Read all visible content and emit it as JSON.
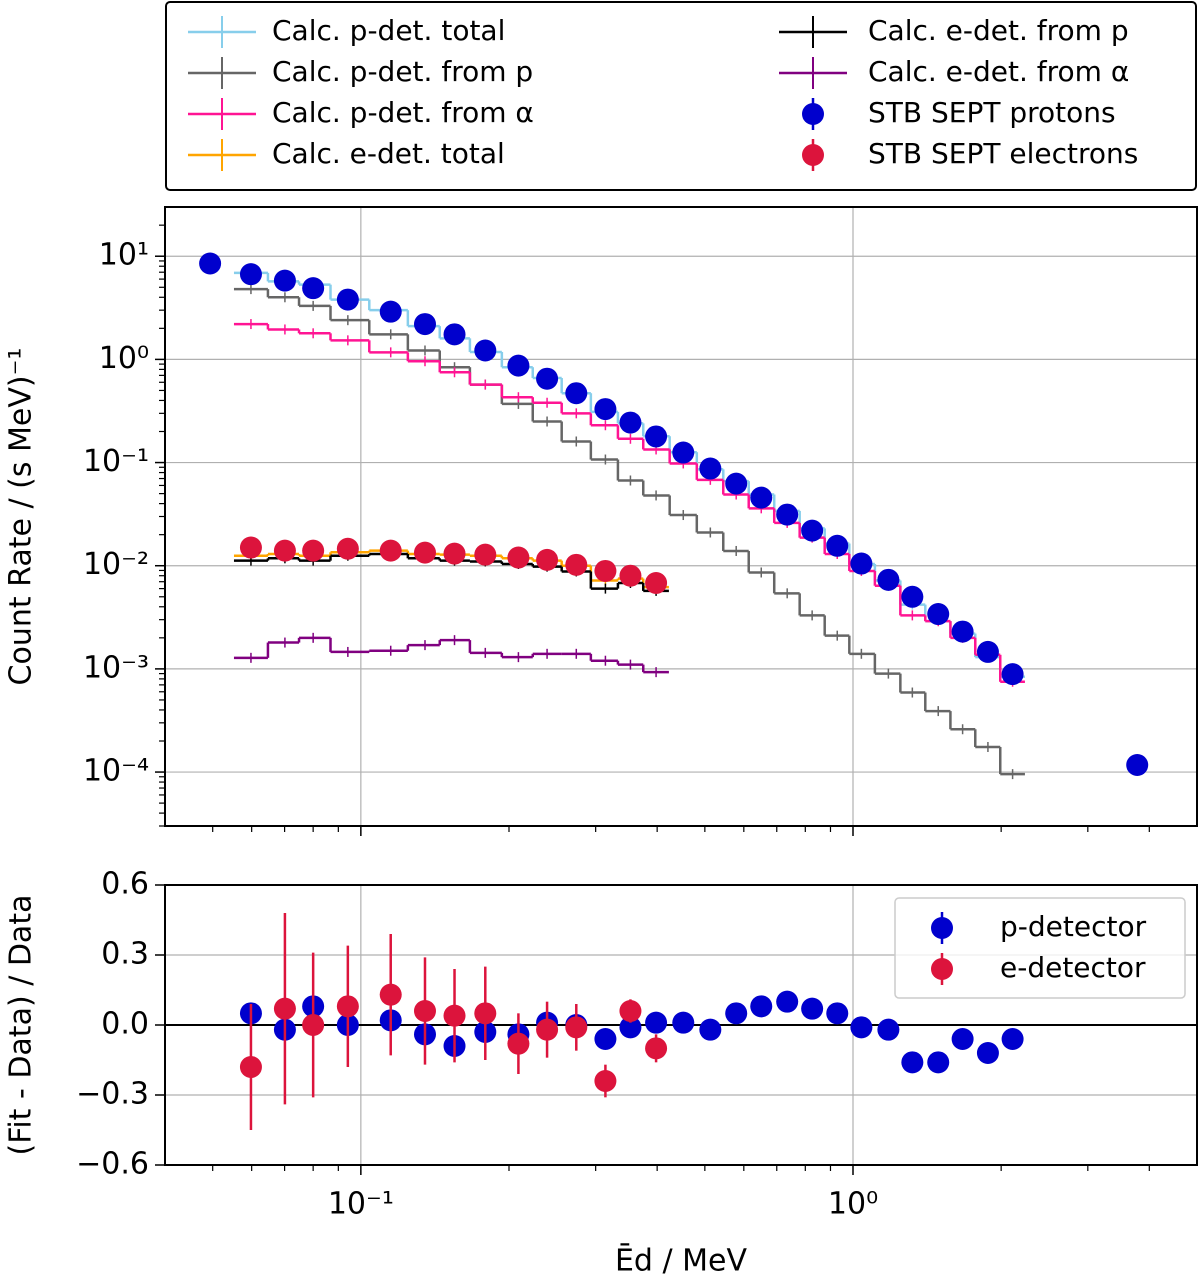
{
  "chart_data": [
    {
      "type": "errorbar",
      "ylabel": "Count Rate / (s MeV)⁻¹",
      "xscale": "log",
      "yscale": "log",
      "grid": true,
      "legend": "outside top",
      "xlim": [
        0.04,
        5
      ],
      "xticks": [
        0.1,
        1
      ],
      "ylim": [
        3e-05,
        30
      ],
      "yticks": [
        {
          "value": 0.0001,
          "label": "10⁻⁴"
        },
        {
          "value": 0.001,
          "label": "10⁻³"
        },
        {
          "value": 0.01,
          "label": "10⁻²"
        },
        {
          "value": 0.1,
          "label": "10⁻¹"
        },
        {
          "value": 1,
          "label": "10⁰"
        },
        {
          "value": 10,
          "label": "10¹"
        }
      ],
      "series": [
        {
          "name": "Calc. p-det. total",
          "color": "#87ceeb",
          "style": "step",
          "x": [
            0.0598,
            0.0701,
            0.08,
            0.0941,
            0.115,
            0.135,
            0.155,
            0.179,
            0.209,
            0.239,
            0.274,
            0.314,
            0.353,
            0.398,
            0.452,
            0.513,
            0.579,
            0.651,
            0.735,
            0.826,
            0.929,
            1.04,
            1.18,
            1.32,
            1.49,
            1.67,
            1.88,
            2.11
          ],
          "values": [
            6.9,
            5.7,
            5.3,
            3.8,
            3.0,
            2.1,
            1.6,
            1.18,
            0.84,
            0.66,
            0.47,
            0.31,
            0.24,
            0.18,
            0.126,
            0.086,
            0.066,
            0.049,
            0.034,
            0.023,
            0.0164,
            0.0104,
            0.0072,
            0.0042,
            0.0029,
            0.0022,
            0.0013,
            0.00084
          ]
        },
        {
          "name": "Calc. p-det. from p",
          "color": "#666666",
          "style": "step",
          "x": [
            0.0598,
            0.0701,
            0.08,
            0.0941,
            0.115,
            0.135,
            0.155,
            0.179,
            0.209,
            0.239,
            0.274,
            0.314,
            0.353,
            0.398,
            0.452,
            0.513,
            0.579,
            0.651,
            0.735,
            0.826,
            0.929,
            1.04,
            1.18,
            1.32,
            1.49,
            1.67,
            1.88,
            2.11
          ],
          "values": [
            4.8,
            4.0,
            3.3,
            2.4,
            1.75,
            1.22,
            0.84,
            0.57,
            0.37,
            0.25,
            0.16,
            0.107,
            0.067,
            0.048,
            0.031,
            0.021,
            0.0139,
            0.0086,
            0.0054,
            0.0033,
            0.0021,
            0.0014,
            0.0009,
            0.00059,
            0.00039,
            0.00026,
            0.000175,
            9.55e-05
          ]
        },
        {
          "name": "Calc. p-det. from α",
          "color": "#ff1493",
          "style": "step",
          "x": [
            0.0598,
            0.0701,
            0.08,
            0.0941,
            0.115,
            0.135,
            0.155,
            0.179,
            0.209,
            0.239,
            0.274,
            0.314,
            0.353,
            0.398,
            0.452,
            0.513,
            0.579,
            0.651,
            0.735,
            0.826,
            0.929,
            1.04,
            1.18,
            1.32,
            1.49,
            1.67,
            1.88,
            2.11
          ],
          "values": [
            2.2,
            1.95,
            1.79,
            1.53,
            1.17,
            0.96,
            0.75,
            0.57,
            0.43,
            0.38,
            0.3,
            0.23,
            0.17,
            0.134,
            0.098,
            0.068,
            0.049,
            0.036,
            0.026,
            0.0187,
            0.013,
            0.0089,
            0.0064,
            0.0033,
            0.0029,
            0.002,
            0.00137,
            0.00075
          ]
        },
        {
          "name": "Calc. e-det. total",
          "color": "#ffa500",
          "style": "step",
          "x": [
            0.0598,
            0.0701,
            0.08,
            0.0941,
            0.115,
            0.135,
            0.155,
            0.179,
            0.209,
            0.239,
            0.274,
            0.314,
            0.353,
            0.398
          ],
          "values": [
            0.0125,
            0.013,
            0.0125,
            0.0135,
            0.014,
            0.013,
            0.0128,
            0.0125,
            0.0118,
            0.0112,
            0.01,
            0.0072,
            0.0075,
            0.0062
          ]
        },
        {
          "name": "Calc. e-det. from p",
          "color": "#000000",
          "style": "step",
          "x": [
            0.0598,
            0.0701,
            0.08,
            0.0941,
            0.115,
            0.135,
            0.155,
            0.179,
            0.209,
            0.239,
            0.274,
            0.314,
            0.353,
            0.398
          ],
          "values": [
            0.0112,
            0.0118,
            0.0112,
            0.0125,
            0.013,
            0.0118,
            0.0112,
            0.011,
            0.0104,
            0.0098,
            0.0088,
            0.006,
            0.0068,
            0.0057
          ]
        },
        {
          "name": "Calc. e-det. from α",
          "color": "#800080",
          "style": "step",
          "x": [
            0.0598,
            0.0701,
            0.08,
            0.0941,
            0.115,
            0.135,
            0.155,
            0.179,
            0.209,
            0.239,
            0.274,
            0.314,
            0.353,
            0.398
          ],
          "values": [
            0.00128,
            0.0018,
            0.002,
            0.00146,
            0.0015,
            0.0017,
            0.0019,
            0.00143,
            0.0013,
            0.0014,
            0.0014,
            0.0012,
            0.0011,
            0.00093
          ]
        },
        {
          "name": "STB SEPT protons",
          "color": "#0000cd",
          "style": "points",
          "x": [
            0.0494,
            0.0598,
            0.0701,
            0.08,
            0.0941,
            0.115,
            0.135,
            0.155,
            0.179,
            0.209,
            0.239,
            0.274,
            0.314,
            0.353,
            0.398,
            0.452,
            0.513,
            0.579,
            0.651,
            0.735,
            0.826,
            0.929,
            1.04,
            1.18,
            1.32,
            1.49,
            1.67,
            1.88,
            2.11,
            3.78
          ],
          "values": [
            8.5,
            6.7,
            5.8,
            4.9,
            3.8,
            2.9,
            2.2,
            1.75,
            1.22,
            0.87,
            0.65,
            0.47,
            0.33,
            0.244,
            0.179,
            0.125,
            0.0875,
            0.0625,
            0.0457,
            0.0313,
            0.0219,
            0.0156,
            0.0105,
            0.0073,
            0.005,
            0.0034,
            0.0023,
            0.00146,
            0.00089,
            0.000117
          ]
        },
        {
          "name": "STB SEPT electrons",
          "color": "#dc143c",
          "style": "points",
          "x": [
            0.0598,
            0.0701,
            0.08,
            0.0941,
            0.115,
            0.135,
            0.155,
            0.179,
            0.209,
            0.239,
            0.274,
            0.314,
            0.353,
            0.398
          ],
          "values": [
            0.015,
            0.014,
            0.014,
            0.0146,
            0.014,
            0.0134,
            0.0131,
            0.0128,
            0.012,
            0.0114,
            0.0102,
            0.0089,
            0.008,
            0.0068
          ]
        }
      ]
    },
    {
      "type": "errorbar",
      "xlabel": "Ēd / MeV",
      "ylabel": "(Fit - Data) / Data",
      "xscale": "log",
      "grid": true,
      "legend": "upper right",
      "xlim": [
        0.04,
        5
      ],
      "xticks": [
        {
          "value": 0.1,
          "label": "10⁻¹"
        },
        {
          "value": 1,
          "label": "10⁰"
        }
      ],
      "ylim": [
        -0.6,
        0.6
      ],
      "yticks": [
        {
          "value": -0.6,
          "label": "−0.6"
        },
        {
          "value": -0.3,
          "label": "−0.3"
        },
        {
          "value": 0,
          "label": "0.0"
        },
        0.3,
        0.6
      ],
      "series": [
        {
          "name": "p-detector",
          "color": "#0000cd",
          "x": [
            0.0598,
            0.0701,
            0.08,
            0.0941,
            0.115,
            0.135,
            0.155,
            0.179,
            0.209,
            0.239,
            0.274,
            0.314,
            0.353,
            0.398,
            0.452,
            0.513,
            0.579,
            0.651,
            0.735,
            0.826,
            0.929,
            1.04,
            1.18,
            1.32,
            1.49,
            1.67,
            1.88,
            2.11
          ],
          "values": [
            0.05,
            -0.02,
            0.08,
            0.0,
            0.02,
            -0.04,
            -0.09,
            -0.03,
            -0.04,
            0.01,
            0.0,
            -0.06,
            -0.01,
            0.01,
            0.01,
            -0.02,
            0.05,
            0.08,
            0.1,
            0.07,
            0.05,
            -0.01,
            -0.02,
            -0.16,
            -0.16,
            -0.06,
            -0.12,
            -0.06
          ],
          "errors": [
            0.04,
            0.04,
            0.035,
            0.035,
            0.035,
            0.035,
            0.035,
            0.035,
            0.035,
            0.035,
            0.035,
            0.035,
            0.035,
            0.035,
            0.035,
            0.035,
            0.04,
            0.04,
            0.04,
            0.04,
            0.04,
            0.04,
            0.04,
            0.04,
            0.04,
            0.04,
            0.04,
            0.04
          ]
        },
        {
          "name": "e-detector",
          "color": "#dc143c",
          "x": [
            0.0598,
            0.0701,
            0.08,
            0.0941,
            0.115,
            0.135,
            0.155,
            0.179,
            0.209,
            0.239,
            0.274,
            0.314,
            0.353,
            0.398
          ],
          "values": [
            -0.18,
            0.07,
            0.0,
            0.08,
            0.13,
            0.06,
            0.04,
            0.05,
            -0.08,
            -0.02,
            -0.01,
            -0.24,
            0.06,
            -0.1
          ],
          "errors": [
            0.27,
            0.41,
            0.31,
            0.26,
            0.26,
            0.23,
            0.2,
            0.2,
            0.13,
            0.12,
            0.1,
            0.07,
            0.05,
            0.06
          ]
        }
      ]
    }
  ]
}
